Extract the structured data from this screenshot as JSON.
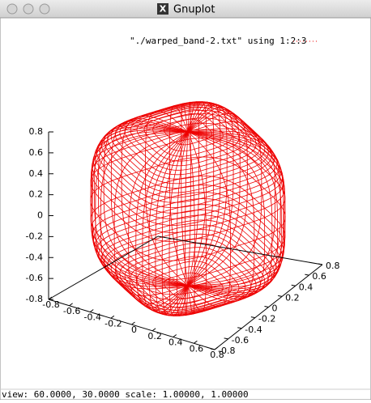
{
  "window": {
    "title": "Gnuplot"
  },
  "plot": {
    "key": "\"./warped_band-2.txt\" using 1:2:3",
    "zticks": [
      0.8,
      0.6,
      0.4,
      0.2,
      0,
      -0.2,
      -0.4,
      -0.6,
      -0.8
    ],
    "xticks": [
      -0.8,
      -0.6,
      -0.4,
      -0.2,
      0,
      0.2,
      0.4,
      0.6,
      0.8
    ],
    "yticks": [
      -0.8,
      -0.6,
      -0.4,
      -0.2,
      0,
      0.2,
      0.4,
      0.6,
      0.8
    ]
  },
  "status": "view: 60.0000, 30.0000   scale: 1.00000, 1.00000"
}
